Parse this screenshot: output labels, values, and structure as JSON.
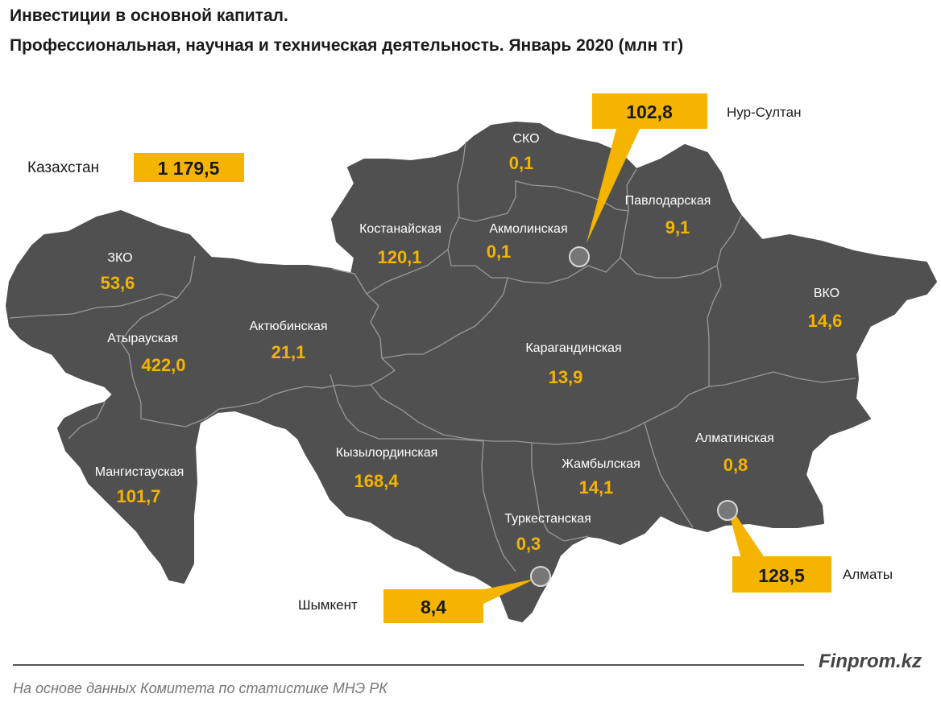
{
  "title": {
    "line1": "Инвестиции в основной капитал.",
    "line2": "Профессиональная, научная и техническая деятельность. Январь 2020 (млн тг)"
  },
  "total": {
    "label": "Казахстан",
    "value": "1 179,5"
  },
  "regions": {
    "sko": {
      "name": "СКО",
      "value": "0,1"
    },
    "kostanay": {
      "name": "Костанайская",
      "value": "120,1"
    },
    "akmola": {
      "name": "Акмолинская",
      "value": "0,1"
    },
    "pavlodar": {
      "name": "Павлодарская",
      "value": "9,1"
    },
    "zko": {
      "name": "ЗКО",
      "value": "53,6"
    },
    "atyrau": {
      "name": "Атырауская",
      "value": "422,0"
    },
    "aktobe": {
      "name": "Актюбинская",
      "value": "21,1"
    },
    "karaganda": {
      "name": "Карагандинская",
      "value": "13,9"
    },
    "vko": {
      "name": "ВКО",
      "value": "14,6"
    },
    "almaty_region": {
      "name": "Алматинская",
      "value": "0,8"
    },
    "zhambyl": {
      "name": "Жамбылская",
      "value": "14,1"
    },
    "kyzylorda": {
      "name": "Кызылординская",
      "value": "168,4"
    },
    "mangystau": {
      "name": "Мангистауская",
      "value": "101,7"
    },
    "turkestan": {
      "name": "Туркестанская",
      "value": "0,3"
    }
  },
  "cities": {
    "nur_sultan": {
      "name": "Нур-Султан",
      "value": "102,8"
    },
    "almaty": {
      "name": "Алматы",
      "value": "128,5"
    },
    "shymkent": {
      "name": "Шымкент",
      "value": "8,4"
    }
  },
  "colors": {
    "land": "#505050",
    "border": "#9a9a9a",
    "accent": "#f5b400",
    "value_text": "#f5b400",
    "region_text": "#ffffff"
  },
  "footer": {
    "brand": "Finprom.kz",
    "source": "На основе данных Комитета по статистике МНЭ РК"
  }
}
